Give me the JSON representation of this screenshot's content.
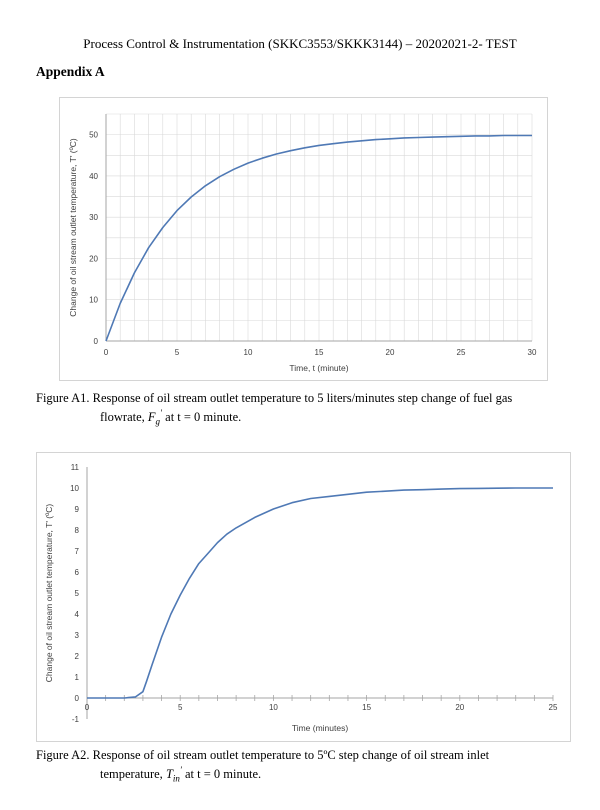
{
  "header": {
    "title": "Process Control & Instrumentation (SKKC3553/SKKK3144) – 20202021-2- TEST",
    "appendix": "Appendix A"
  },
  "colors": {
    "series": "#4f79b5",
    "grid": "#d9d9d9",
    "axis": "#a6a6a6"
  },
  "chart_data": [
    {
      "type": "line",
      "title": "",
      "xlabel": "Time, t (minute)",
      "ylabel": "Change of oil stream outlet temperature, T' (ºC)",
      "xlim": [
        0,
        30
      ],
      "ylim": [
        0,
        55
      ],
      "xticks": [
        0,
        5,
        10,
        15,
        20,
        25,
        30
      ],
      "yticks": [
        0,
        10,
        20,
        30,
        40,
        50
      ],
      "grid": true,
      "legend": "none",
      "series": [
        {
          "x": [
            0,
            1,
            2,
            3,
            4,
            5,
            6,
            7,
            8,
            9,
            10,
            11,
            12,
            13,
            14,
            15,
            16,
            17,
            18,
            19,
            20,
            21,
            22,
            23,
            24,
            25,
            26,
            27,
            28,
            29,
            30
          ],
          "y": [
            0,
            9.1,
            16.5,
            22.6,
            27.5,
            31.6,
            34.9,
            37.6,
            39.8,
            41.6,
            43.1,
            44.3,
            45.3,
            46.1,
            46.8,
            47.4,
            47.8,
            48.2,
            48.5,
            48.8,
            49.0,
            49.2,
            49.3,
            49.4,
            49.5,
            49.6,
            49.7,
            49.7,
            49.8,
            49.8,
            49.8
          ]
        }
      ]
    },
    {
      "type": "line",
      "title": "",
      "xlabel": "Time (minutes)",
      "ylabel": "Change of oil stream outlet temperature, T' (ºC)",
      "xlim": [
        0,
        25
      ],
      "ylim": [
        -1,
        11
      ],
      "xticks": [
        0,
        5,
        10,
        15,
        20,
        25
      ],
      "yticks": [
        -1,
        0,
        1,
        2,
        3,
        4,
        5,
        6,
        7,
        8,
        9,
        10,
        11
      ],
      "grid": false,
      "legend": "none",
      "series": [
        {
          "x": [
            0,
            1,
            2,
            2.6,
            3.0,
            3.2,
            3.5,
            4,
            4.5,
            5,
            5.5,
            6,
            6.5,
            7,
            7.5,
            8,
            9,
            10,
            11,
            12,
            13,
            14,
            15,
            16,
            17,
            18,
            19,
            20,
            21,
            22,
            23,
            24,
            25
          ],
          "y": [
            0,
            0,
            0,
            0.05,
            0.3,
            0.8,
            1.6,
            2.9,
            4.0,
            4.9,
            5.7,
            6.4,
            6.9,
            7.4,
            7.8,
            8.1,
            8.6,
            9.0,
            9.3,
            9.5,
            9.6,
            9.7,
            9.8,
            9.85,
            9.9,
            9.92,
            9.95,
            9.97,
            9.98,
            9.99,
            10.0,
            10.0,
            10.0
          ]
        }
      ]
    }
  ],
  "captions": {
    "fig1": {
      "label": "Figure A1.",
      "line1": "Response of oil stream outlet temperature to 5 liters/minutes step change of fuel gas",
      "line2_a": "flowrate,",
      "sym_main": "F",
      "sym_sub": "g",
      "line2_b": "at t = 0 minute."
    },
    "fig2": {
      "label": "Figure A2.",
      "line1": "Response of oil stream outlet temperature to 5ºC step change of oil stream inlet",
      "line2_a": "temperature,",
      "sym_main": "T",
      "sym_sub": "in",
      "line2_b": "at t = 0 minute."
    }
  }
}
